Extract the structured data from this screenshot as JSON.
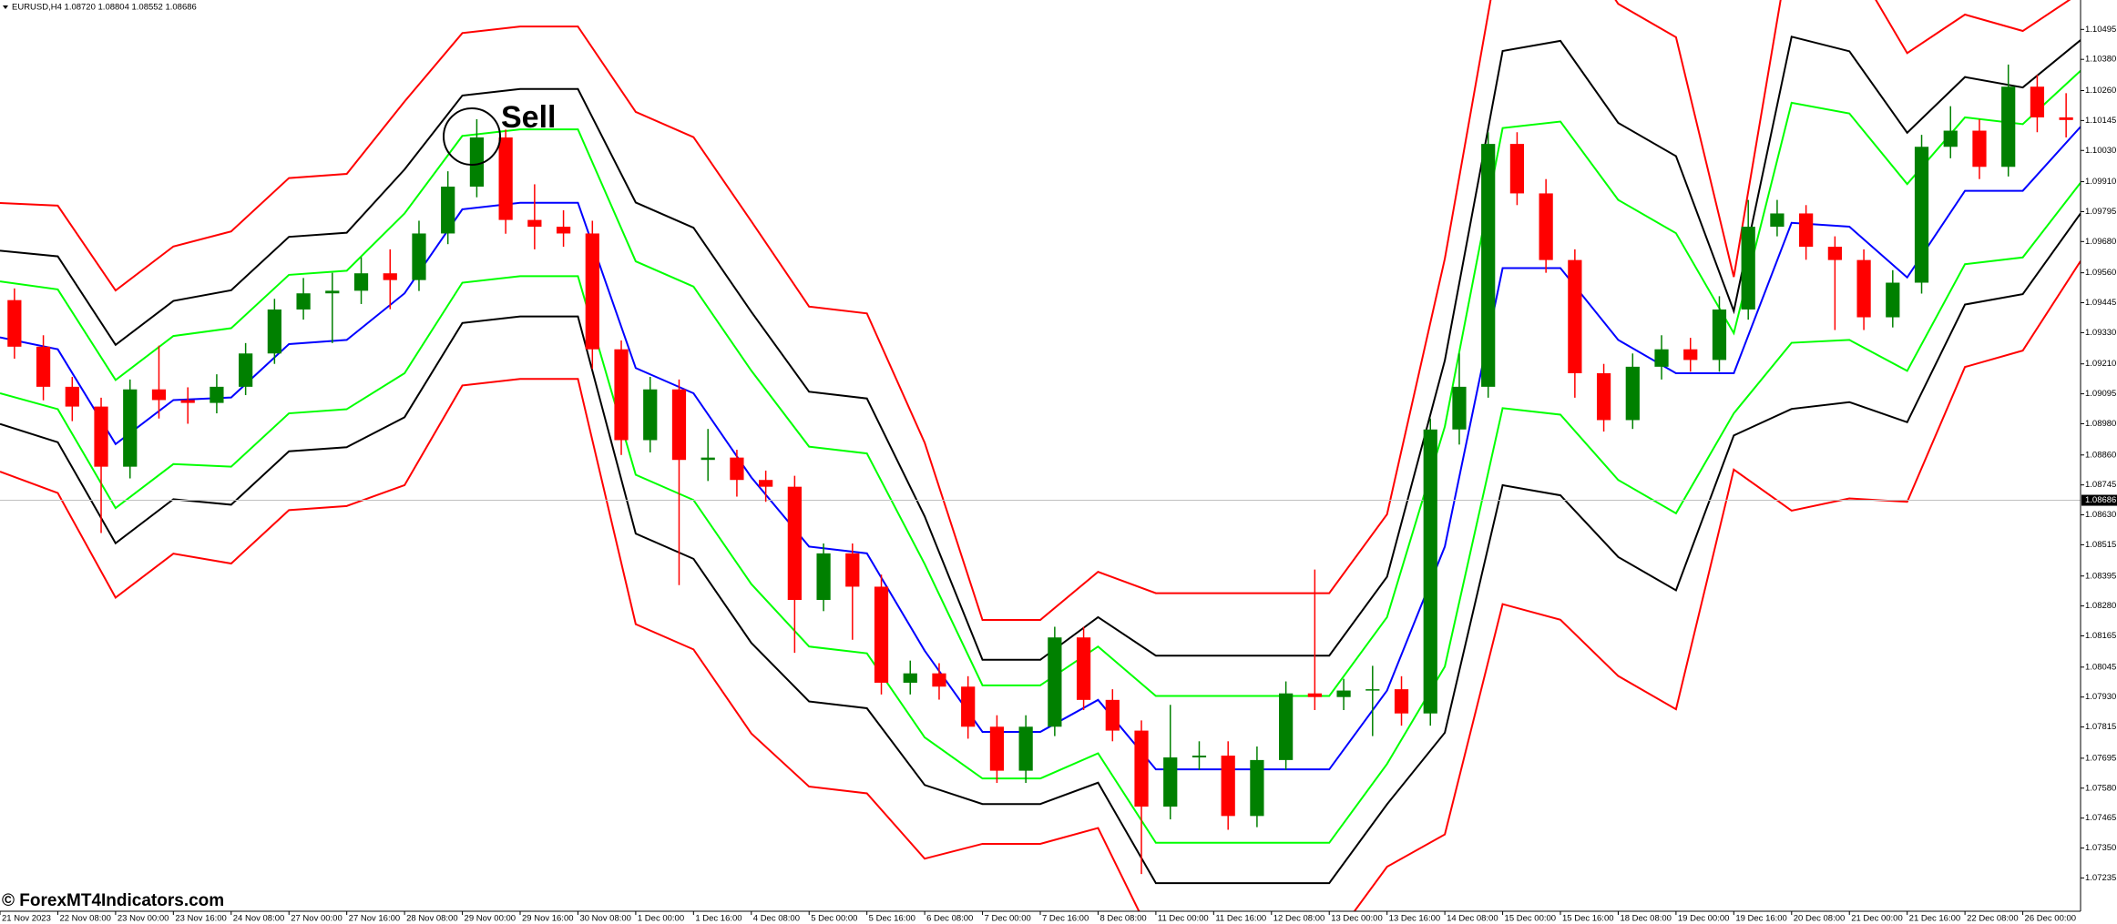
{
  "chart_data": {
    "type": "candlestick",
    "title": "EURUSD,H4  1.08720 1.08804 1.08552 1.08686",
    "annotation": "Sell",
    "watermark": "© ForexMT4Indicators.com",
    "current_price": 1.08686,
    "up_color": "#008000",
    "down_color": "#ff0000",
    "ylim": [
      1.07107,
      1.10608
    ],
    "yticks": [
      1.10495,
      {
        "value": 1.1038,
        "label": "1.10380"
      },
      {
        "value": 1.1026,
        "label": "1.10260"
      },
      1.10145,
      {
        "value": 1.1003,
        "label": "1.10030"
      },
      {
        "value": 1.0991,
        "label": "1.09910"
      },
      1.09795,
      {
        "value": 1.0968,
        "label": "1.09680"
      },
      {
        "value": 1.0956,
        "label": "1.09560"
      },
      1.09445,
      {
        "value": 1.0933,
        "label": "1.09330"
      },
      {
        "value": 1.0921,
        "label": "1.09210"
      },
      1.09095,
      {
        "value": 1.0898,
        "label": "1.08980"
      },
      {
        "value": 1.0886,
        "label": "1.08860"
      },
      1.08745,
      {
        "value": 1.0863,
        "label": "1.08630"
      },
      1.08515,
      1.08395,
      {
        "value": 1.0828,
        "label": "1.08280"
      },
      1.08165,
      1.08045,
      {
        "value": 1.0793,
        "label": "1.07930"
      },
      1.07815,
      1.07695,
      {
        "value": 1.0758,
        "label": "1.07580"
      },
      1.07465,
      {
        "value": 1.0735,
        "label": "1.07350"
      },
      1.07235
    ],
    "categories": [
      "21 Nov 2023",
      null,
      "22 Nov 08:00",
      null,
      "23 Nov 00:00",
      null,
      "23 Nov 16:00",
      null,
      "24 Nov 08:00",
      null,
      "27 Nov 00:00",
      null,
      "27 Nov 16:00",
      null,
      "28 Nov 08:00",
      null,
      "29 Nov 00:00",
      null,
      "29 Nov 16:00",
      null,
      "30 Nov 08:00",
      null,
      "1 Dec 00:00",
      null,
      "1 Dec 16:00",
      null,
      "4 Dec 08:00",
      null,
      "5 Dec 00:00",
      null,
      "5 Dec 16:00",
      null,
      "6 Dec 08:00",
      null,
      "7 Dec 00:00",
      null,
      "7 Dec 16:00",
      null,
      "8 Dec 08:00",
      null,
      "11 Dec 00:00",
      null,
      "11 Dec 16:00",
      null,
      "12 Dec 08:00",
      null,
      "13 Dec 00:00",
      null,
      "13 Dec 16:00",
      null,
      "14 Dec 08:00",
      null,
      "15 Dec 00:00",
      null,
      "15 Dec 16:00",
      null,
      "18 Dec 08:00",
      null,
      "19 Dec 00:00",
      null,
      "19 Dec 16:00",
      null,
      "20 Dec 08:00",
      null,
      "21 Dec 00:00",
      null,
      "21 Dec 16:00",
      null,
      "22 Dec 08:00",
      null,
      "26 Dec 00:00",
      null
    ],
    "open": [
      1.09455,
      1.09276,
      1.09122,
      1.09046,
      1.08815,
      1.09112,
      1.09071,
      1.0906,
      1.09122,
      1.0925,
      1.09419,
      1.09481,
      1.09491,
      1.09558,
      1.09532,
      1.09711,
      1.09891,
      1.1008,
      1.09763,
      1.09737,
      1.09711,
      1.09266,
      1.08917,
      1.09112,
      1.08841,
      1.0885,
      1.08764,
      1.08738,
      1.08303,
      1.08482,
      1.08354,
      1.07985,
      1.08021,
      1.0797,
      1.07816,
      1.07647,
      1.07816,
      1.08159,
      1.07919,
      1.07801,
      1.07509,
      1.07698,
      1.07705,
      1.07473,
      1.07688,
      1.07944,
      1.0793,
      1.07955,
      1.0796,
      1.07867,
      1.08958,
      1.09122,
      1.10055,
      1.09865,
      1.09609,
      1.09174,
      1.08994,
      1.09199,
      1.09266,
      1.09225,
      1.09419,
      1.09737,
      1.09788,
      1.0966,
      1.09609,
      1.09389,
      1.09522,
      1.10044,
      1.10106,
      1.09967,
      1.10275,
      1.10157
    ],
    "high": [
      1.095,
      1.0932,
      1.0916,
      1.0908,
      1.0915,
      1.0928,
      1.0912,
      1.0917,
      1.0929,
      1.0946,
      1.0954,
      1.0956,
      1.0962,
      1.0965,
      1.0976,
      1.0995,
      1.1015,
      1.1011,
      1.099,
      1.098,
      1.0976,
      1.093,
      1.0916,
      1.0915,
      1.0896,
      1.0888,
      1.088,
      1.0878,
      1.0852,
      1.0852,
      1.084,
      1.0807,
      1.0806,
      1.0801,
      1.0786,
      1.0786,
      1.082,
      1.082,
      1.0796,
      1.0784,
      1.079,
      1.0776,
      1.0776,
      1.0774,
      1.0799,
      1.0842,
      1.08,
      1.0805,
      1.0801,
      1.09,
      1.0925,
      1.101,
      1.101,
      1.0992,
      1.0965,
      1.0921,
      1.0925,
      1.0932,
      1.0931,
      1.0947,
      1.0984,
      1.0984,
      1.0982,
      1.097,
      1.0965,
      1.0957,
      1.1009,
      1.102,
      1.1015,
      1.1036,
      1.1032,
      1.1025
    ],
    "low": [
      1.0923,
      1.0907,
      1.0899,
      1.0856,
      1.0877,
      1.09,
      1.0898,
      1.0902,
      1.0909,
      1.0921,
      1.0938,
      1.0929,
      1.0944,
      1.0942,
      1.0949,
      1.0967,
      1.0985,
      1.0971,
      1.0965,
      1.0966,
      1.0919,
      1.0886,
      1.0887,
      1.0836,
      1.0876,
      1.087,
      1.0868,
      1.081,
      1.0826,
      1.0815,
      1.0794,
      1.0794,
      1.0792,
      1.0777,
      1.076,
      1.076,
      1.0778,
      1.0788,
      1.0776,
      1.0725,
      1.0746,
      1.0765,
      1.0742,
      1.0743,
      1.0765,
      1.0788,
      1.0788,
      1.0778,
      1.0782,
      1.0782,
      1.089,
      1.0908,
      1.0982,
      1.0956,
      1.0908,
      1.0895,
      1.0896,
      1.0915,
      1.0918,
      1.0918,
      1.0938,
      1.097,
      1.0961,
      1.0934,
      1.0934,
      1.0935,
      1.0948,
      1.1,
      1.0992,
      1.0993,
      1.101,
      1.1008
    ],
    "close": [
      1.09276,
      1.09122,
      1.09046,
      1.08815,
      1.09112,
      1.09071,
      1.0906,
      1.09122,
      1.0925,
      1.09419,
      1.09481,
      1.09491,
      1.09558,
      1.09532,
      1.09711,
      1.09891,
      1.1008,
      1.09763,
      1.09737,
      1.09711,
      1.09266,
      1.08917,
      1.09112,
      1.08841,
      1.0885,
      1.08764,
      1.08738,
      1.08303,
      1.08482,
      1.08354,
      1.07985,
      1.08021,
      1.0797,
      1.07816,
      1.07647,
      1.07816,
      1.08159,
      1.07919,
      1.07801,
      1.07509,
      1.07698,
      1.07705,
      1.07473,
      1.07688,
      1.07944,
      1.0793,
      1.07955,
      1.0796,
      1.07867,
      1.08958,
      1.09122,
      1.10055,
      1.09865,
      1.09609,
      1.09174,
      1.08994,
      1.09199,
      1.09266,
      1.09225,
      1.09419,
      1.09737,
      1.09788,
      1.0966,
      1.09609,
      1.09389,
      1.09522,
      1.10044,
      1.10106,
      1.09967,
      1.10275,
      1.10157,
      1.10147
    ],
    "band_lines": [
      {
        "color": "#ff0000",
        "values": [
          1.09828,
          1.09818,
          1.09492,
          1.09661,
          1.09719,
          1.09924,
          1.0994,
          1.10218,
          1.10481,
          1.10506,
          1.10506,
          1.10178,
          1.10081,
          1.09758,
          1.0943,
          1.09404,
          1.08907,
          1.08226,
          1.08226,
          1.08411,
          1.08329,
          1.08329,
          1.08329,
          1.08329,
          1.08632,
          1.09614,
          1.10869,
          1.10929,
          1.10593,
          1.10465,
          1.09544,
          1.10858,
          1.10781,
          1.10404,
          1.10552,
          1.10489,
          1.10637
        ]
      },
      {
        "color": "#000000",
        "values": [
          1.09645,
          1.09623,
          1.09283,
          1.09452,
          1.09493,
          1.09698,
          1.09714,
          1.09957,
          1.10241,
          1.10266,
          1.10266,
          1.0983,
          1.09733,
          1.0941,
          1.09103,
          1.09077,
          1.08624,
          1.08073,
          1.08073,
          1.08237,
          1.08089,
          1.08089,
          1.08089,
          1.08089,
          1.08392,
          1.09223,
          1.10412,
          1.10451,
          1.10136,
          1.10008,
          1.09413,
          1.10467,
          1.10411,
          1.10098,
          1.10312,
          1.10272,
          1.10454
        ]
      },
      {
        "color": "#00ff00",
        "values": [
          1.09527,
          1.09496,
          1.09148,
          1.09317,
          1.09347,
          1.09552,
          1.09568,
          1.09788,
          1.10086,
          1.10111,
          1.10111,
          1.09604,
          1.09507,
          1.09184,
          1.08892,
          1.08866,
          1.08441,
          1.07975,
          1.07975,
          1.08124,
          1.07934,
          1.07934,
          1.07934,
          1.07934,
          1.08237,
          1.08969,
          1.10116,
          1.10141,
          1.0984,
          1.09712,
          1.09328,
          1.10213,
          1.10172,
          1.09901,
          1.10157,
          1.10131,
          1.10336
        ]
      },
      {
        "color": "#0000ff",
        "values": [
          1.09312,
          1.09266,
          1.08902,
          1.09071,
          1.09081,
          1.09286,
          1.09302,
          1.09481,
          1.09804,
          1.09829,
          1.09829,
          1.09194,
          1.09097,
          1.08774,
          1.08508,
          1.08482,
          1.08108,
          1.07796,
          1.07796,
          1.07919,
          1.07652,
          1.07652,
          1.07652,
          1.07652,
          1.07955,
          1.08508,
          1.09578,
          1.09578,
          1.09302,
          1.09174,
          1.09174,
          1.09752,
          1.09737,
          1.09542,
          1.09875,
          1.09875,
          1.10121
        ]
      },
      {
        "color": "#00ff00",
        "values": [
          1.09097,
          1.09036,
          1.08656,
          1.08825,
          1.08815,
          1.0902,
          1.09036,
          1.09174,
          1.09522,
          1.09547,
          1.09547,
          1.08784,
          1.08687,
          1.08364,
          1.08124,
          1.08098,
          1.07775,
          1.07617,
          1.07617,
          1.07714,
          1.0737,
          1.0737,
          1.0737,
          1.0737,
          1.07673,
          1.08047,
          1.0904,
          1.09015,
          1.08764,
          1.08636,
          1.0902,
          1.09291,
          1.09302,
          1.09183,
          1.09593,
          1.09619,
          1.09906
        ]
      },
      {
        "color": "#000000",
        "values": [
          1.08979,
          1.08909,
          1.08521,
          1.0869,
          1.08669,
          1.08874,
          1.0889,
          1.09005,
          1.09367,
          1.09392,
          1.09392,
          1.08558,
          1.08461,
          1.08138,
          1.07913,
          1.07887,
          1.07592,
          1.07519,
          1.07519,
          1.07601,
          1.07215,
          1.07215,
          1.07215,
          1.07215,
          1.07518,
          1.07793,
          1.08744,
          1.08705,
          1.08468,
          1.0834,
          1.08935,
          1.09037,
          1.09063,
          1.08986,
          1.09438,
          1.09478,
          1.09788
        ]
      },
      {
        "color": "#ff0000",
        "values": [
          1.08796,
          1.08714,
          1.08312,
          1.08481,
          1.08443,
          1.08648,
          1.08664,
          1.08744,
          1.09127,
          1.09152,
          1.09152,
          1.0821,
          1.08113,
          1.0779,
          1.07586,
          1.0756,
          1.07309,
          1.07366,
          1.07366,
          1.07427,
          1.06975,
          1.06975,
          1.06975,
          1.06975,
          1.07278,
          1.07402,
          1.08287,
          1.08227,
          1.08011,
          1.07883,
          1.08804,
          1.08646,
          1.08693,
          1.0868,
          1.09198,
          1.09261,
          1.09605
        ]
      }
    ]
  }
}
